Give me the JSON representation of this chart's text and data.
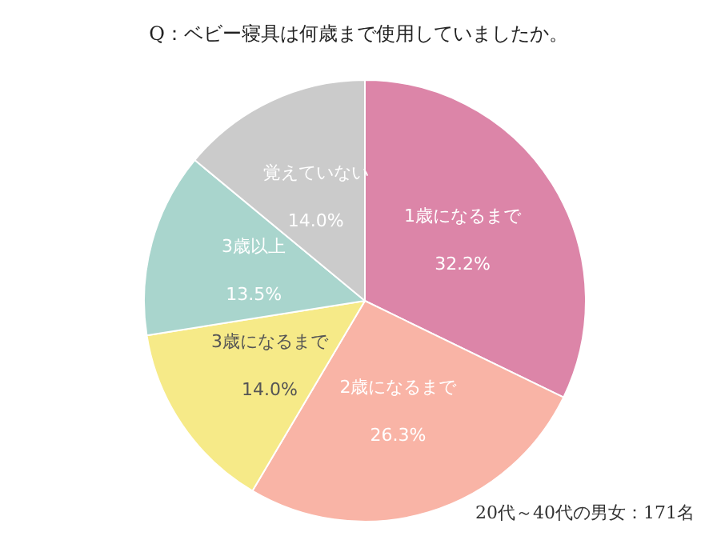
{
  "chart_data": {
    "type": "pie",
    "title": "Q：ベビー寝具は何歳まで使用していましたか。",
    "categories": [
      "1歳になるまで",
      "2歳になるまで",
      "3歳になるまで",
      "3歳以上",
      "覚えていない"
    ],
    "values": [
      32.2,
      26.3,
      14.0,
      13.5,
      14.0
    ],
    "colors": [
      "#dc85a8",
      "#f9b4a6",
      "#f6ea88",
      "#a9d5cd",
      "#cbcbcb"
    ],
    "value_labels": [
      "32.2%",
      "26.3%",
      "14.0%",
      "13.5%",
      "14.0%"
    ],
    "annotations": [
      "20代～40代の男女：171名"
    ]
  }
}
